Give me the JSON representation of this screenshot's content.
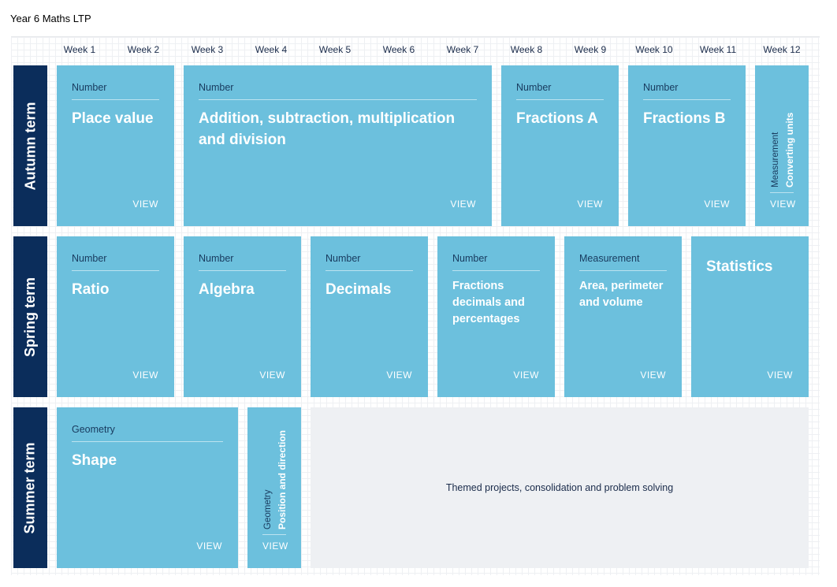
{
  "page_title": "Year 6 Maths LTP",
  "weeks": [
    "Week 1",
    "Week 2",
    "Week 3",
    "Week 4",
    "Week 5",
    "Week 6",
    "Week 7",
    "Week 8",
    "Week 9",
    "Week 10",
    "Week 11",
    "Week 12"
  ],
  "terms": {
    "autumn": "Autumn term",
    "spring": "Spring term",
    "summer": "Summer term"
  },
  "view_label": "VIEW",
  "autumn": {
    "place_value": {
      "category": "Number",
      "title": "Place value"
    },
    "addition": {
      "category": "Number",
      "title": "Addition, subtraction, multiplication and division"
    },
    "fractions_a": {
      "category": "Number",
      "title": "Fractions A"
    },
    "fractions_b": {
      "category": "Number",
      "title": "Fractions B"
    },
    "converting_units": {
      "category": "Measurement",
      "title": "Converting units"
    }
  },
  "spring": {
    "ratio": {
      "category": "Number",
      "title": "Ratio"
    },
    "algebra": {
      "category": "Number",
      "title": "Algebra"
    },
    "decimals": {
      "category": "Number",
      "title": "Decimals"
    },
    "fdp": {
      "category": "Number",
      "title": "Fractions decimals and percentages"
    },
    "area": {
      "category": "Measurement",
      "title": "Area, perimeter and volume"
    },
    "statistics": {
      "title": "Statistics"
    }
  },
  "summer": {
    "shape": {
      "category": "Geometry",
      "title": "Shape"
    },
    "position": {
      "category": "Geometry",
      "title": "Position and direction"
    },
    "themed": "Themed projects, consolidation and problem solving"
  }
}
